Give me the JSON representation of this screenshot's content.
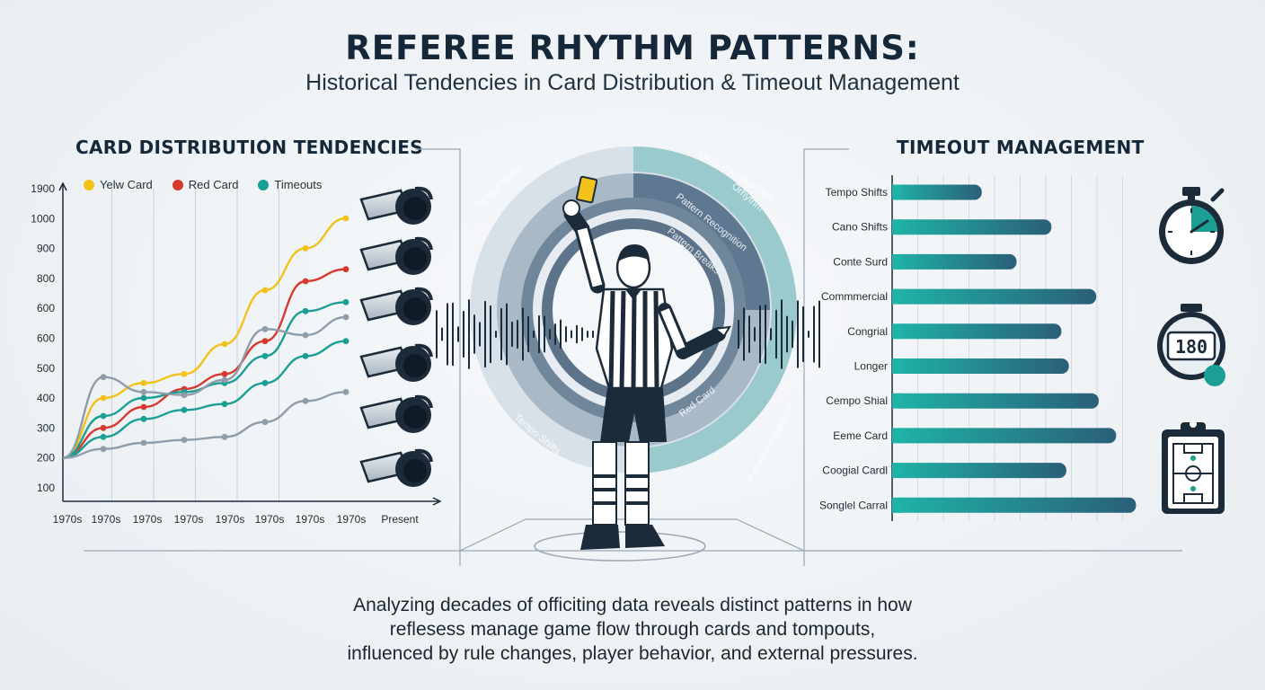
{
  "header": {
    "title": "REFEREE RHYTHM PATTERNS:",
    "subtitle": "Historical Tendencies in Card Distribution & Timeout Management"
  },
  "left_panel": {
    "title": "CARD DISTRIBUTION TENDENCIES"
  },
  "right_panel": {
    "title": "TIMEOUT MANAGEMENT"
  },
  "center": {
    "ring_labels": [
      "Tempo Shifts",
      "Pattern Recognition",
      "Orhythm",
      "Pattern Recognition",
      "Pattern Breaks",
      "Red Card",
      "Tempo Shifts",
      "Pattern Recognition"
    ]
  },
  "icons": {
    "stopwatch_readout": "180"
  },
  "footer": {
    "lines": [
      "Analyzing decades of officiting data reveals distinct patterns in how",
      "reflesess manage game flow through cards and tompouts,",
      "influenced by rule changes, player behavior, and external pressures."
    ]
  },
  "colors": {
    "yellow": "#f2c21b",
    "red": "#d63a2f",
    "teal": "#1b9e93",
    "gray": "#8f9dab",
    "navy": "#1c2b3a"
  },
  "chart_data": [
    {
      "type": "line",
      "title": "CARD DISTRIBUTION TENDENCIES",
      "x": [
        "1970s",
        "1970s",
        "1970s",
        "1970s",
        "1970s",
        "1970s",
        "1970s",
        "1970s",
        "Present"
      ],
      "y_ticks": [
        "1900",
        "1000",
        "900",
        "800",
        "600",
        "600",
        "500",
        "400",
        "300",
        "200",
        "100"
      ],
      "legend": [
        {
          "name": "Yelw Card",
          "color": "#f2c21b"
        },
        {
          "name": "Red Card",
          "color": "#d63a2f"
        },
        {
          "name": "Timeouts",
          "color": "#1b9e93"
        }
      ],
      "legend_position": "top",
      "grid": true,
      "series": [
        {
          "color": "#f2c21b",
          "points": [
            [
              0,
              200
            ],
            [
              1,
              400
            ],
            [
              2,
              450
            ],
            [
              3,
              480
            ],
            [
              4,
              580
            ],
            [
              5,
              760
            ],
            [
              6,
              900
            ],
            [
              7,
              1000
            ]
          ]
        },
        {
          "color": "#d63a2f",
          "points": [
            [
              0,
              200
            ],
            [
              1,
              300
            ],
            [
              2,
              370
            ],
            [
              3,
              430
            ],
            [
              4,
              480
            ],
            [
              5,
              590
            ],
            [
              6,
              790
            ],
            [
              7,
              830
            ]
          ]
        },
        {
          "color": "#1b9e93",
          "points": [
            [
              0,
              200
            ],
            [
              1,
              340
            ],
            [
              2,
              400
            ],
            [
              3,
              420
            ],
            [
              4,
              450
            ],
            [
              5,
              540
            ],
            [
              6,
              690
            ],
            [
              7,
              720
            ]
          ]
        },
        {
          "color": "#1b9e93",
          "points": [
            [
              0,
              200
            ],
            [
              1,
              270
            ],
            [
              2,
              330
            ],
            [
              3,
              360
            ],
            [
              4,
              380
            ],
            [
              5,
              450
            ],
            [
              6,
              540
            ],
            [
              7,
              590
            ]
          ]
        },
        {
          "color": "#8f9dab",
          "points": [
            [
              0,
              200
            ],
            [
              1,
              470
            ],
            [
              2,
              420
            ],
            [
              3,
              410
            ],
            [
              4,
              460
            ],
            [
              5,
              630
            ],
            [
              6,
              610
            ],
            [
              7,
              670
            ]
          ]
        },
        {
          "color": "#8f9dab",
          "points": [
            [
              0,
              200
            ],
            [
              1,
              230
            ],
            [
              2,
              250
            ],
            [
              3,
              260
            ],
            [
              4,
              270
            ],
            [
              5,
              320
            ],
            [
              6,
              390
            ],
            [
              7,
              420
            ]
          ]
        }
      ]
    },
    {
      "type": "bar",
      "orientation": "horizontal",
      "title": "TIMEOUT MANAGEMENT",
      "categories": [
        "Tempo Shifts",
        "Cano Shifts",
        "Conte Surd",
        "Commmercial",
        "Congrial",
        "Longer",
        "Cempo Shial",
        "Eeme Card",
        "Coogial Cardl",
        "Songlel Carral"
      ],
      "values": [
        0.36,
        0.64,
        0.5,
        0.82,
        0.68,
        0.71,
        0.83,
        0.9,
        0.7,
        0.98
      ],
      "grid": true
    }
  ]
}
